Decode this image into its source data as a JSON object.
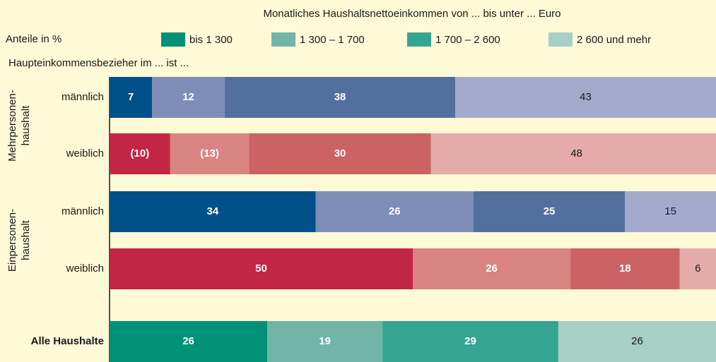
{
  "chart_data": {
    "type": "bar",
    "orientation": "horizontal",
    "stacked": true,
    "title": "Monatliches Haushaltsnettoeinkommen von ... bis unter ... Euro",
    "y_label": "Anteile in %",
    "subtitle": "Haupteinkommensbezieher im ... ist ...",
    "groups": [
      {
        "lines": [
          "Mehrpersonen-",
          "haushalt"
        ],
        "rows": [
          0,
          1
        ]
      },
      {
        "lines": [
          "Einpersonen-",
          "haushalt"
        ],
        "rows": [
          2,
          3
        ]
      }
    ],
    "categories": [
      "männlich",
      "weiblich",
      "männlich",
      "weiblich",
      "Alle Haushalte"
    ],
    "series": [
      {
        "name": "bis 1 300",
        "color": "#009178",
        "values": [
          7,
          10,
          34,
          50,
          26
        ],
        "value_labels": [
          "7",
          "(10)",
          "34",
          "50",
          "26"
        ]
      },
      {
        "name": "1 300 – 1 700",
        "color": "#72b4a8",
        "values": [
          12,
          13,
          26,
          26,
          19
        ],
        "value_labels": [
          "12",
          "(13)",
          "26",
          "26",
          "19"
        ]
      },
      {
        "name": "1 700 – 2 600",
        "color": "#35a593",
        "values": [
          38,
          30,
          25,
          18,
          29
        ]
      },
      {
        "name": "2 600 und mehr",
        "color": "#a6cfc5",
        "values": [
          43,
          48,
          15,
          6,
          26
        ]
      }
    ],
    "row_colors": [
      [
        "#005089",
        "#7d8db8",
        "#536f9e",
        "#a4aacb"
      ],
      [
        "#c12645",
        "#d98482",
        "#cb6263",
        "#e4aba8"
      ],
      [
        "#005089",
        "#7d8db8",
        "#536f9e",
        "#a4aacb"
      ],
      [
        "#c12645",
        "#d98482",
        "#cb6263",
        "#e4aba8"
      ],
      [
        "#009178",
        "#72b4a8",
        "#35a593",
        "#a6cfc5"
      ]
    ],
    "xlim": [
      0,
      100
    ]
  }
}
